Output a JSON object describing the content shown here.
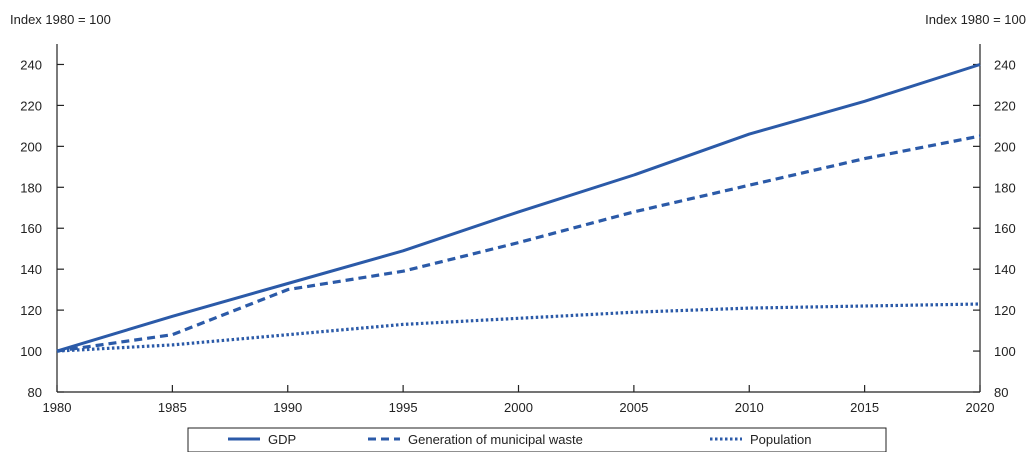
{
  "chart_data": {
    "type": "line",
    "title": "",
    "ylabel_left": "Index 1980 = 100",
    "ylabel_right": "Index 1980 = 100",
    "xlim": [
      1980,
      2020
    ],
    "ylim": [
      80,
      250
    ],
    "x_ticks": [
      1980,
      1985,
      1990,
      1995,
      2000,
      2005,
      2010,
      2015,
      2020
    ],
    "y_ticks": [
      80,
      100,
      120,
      140,
      160,
      180,
      200,
      220,
      240
    ],
    "grid": false,
    "legend_position": "bottom",
    "colors": {
      "line": "#2B5AA8",
      "axis": "#222222"
    },
    "series": [
      {
        "name": "GDP",
        "style": "solid",
        "x": [
          1980,
          1985,
          1990,
          1995,
          2000,
          2005,
          2010,
          2015,
          2020
        ],
        "y": [
          100,
          117,
          133,
          149,
          168,
          186,
          206,
          222,
          240
        ]
      },
      {
        "name": "Generation of municipal waste",
        "style": "dashed",
        "x": [
          1980,
          1985,
          1990,
          1995,
          2000,
          2005,
          2010,
          2015,
          2020
        ],
        "y": [
          100,
          108,
          130,
          139,
          153,
          168,
          181,
          194,
          205
        ]
      },
      {
        "name": "Population",
        "style": "dotted",
        "x": [
          1980,
          1985,
          1990,
          1995,
          2000,
          2005,
          2010,
          2015,
          2020
        ],
        "y": [
          100,
          103,
          108,
          113,
          116,
          119,
          121,
          122,
          123
        ]
      }
    ]
  }
}
